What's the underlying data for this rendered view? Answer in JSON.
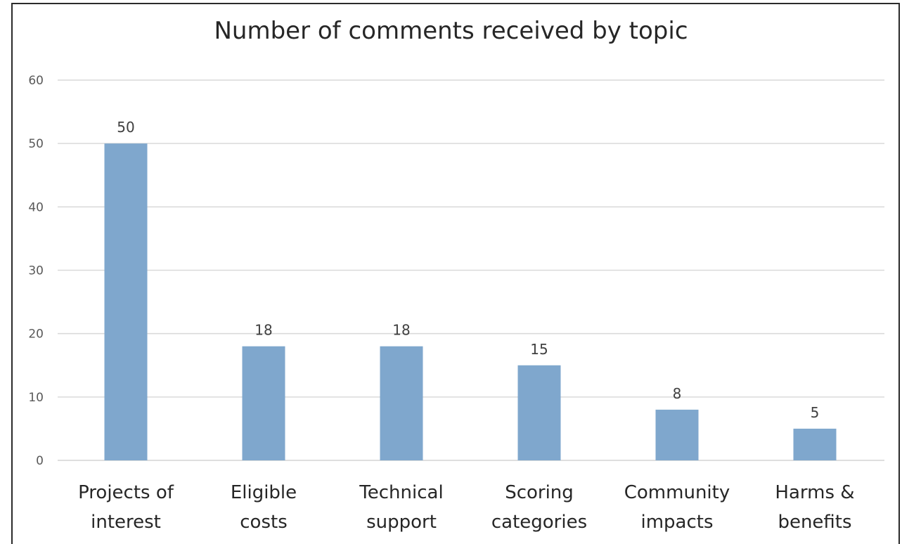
{
  "chart_data": {
    "type": "bar",
    "title": "Number of comments received by topic",
    "categories": [
      [
        "Projects of",
        "interest"
      ],
      [
        "Eligible",
        "costs"
      ],
      [
        "Technical",
        "support"
      ],
      [
        "Scoring",
        "categories"
      ],
      [
        "Community",
        "impacts"
      ],
      [
        "Harms &",
        "benefits"
      ]
    ],
    "values": [
      50,
      18,
      18,
      15,
      8,
      5
    ],
    "ylim": [
      0,
      60
    ],
    "yticks": [
      0,
      10,
      20,
      30,
      40,
      50,
      60
    ],
    "grid": true,
    "legend": "none",
    "bar_color": "#7fa7cd",
    "grid_color": "#d9d9d9"
  }
}
